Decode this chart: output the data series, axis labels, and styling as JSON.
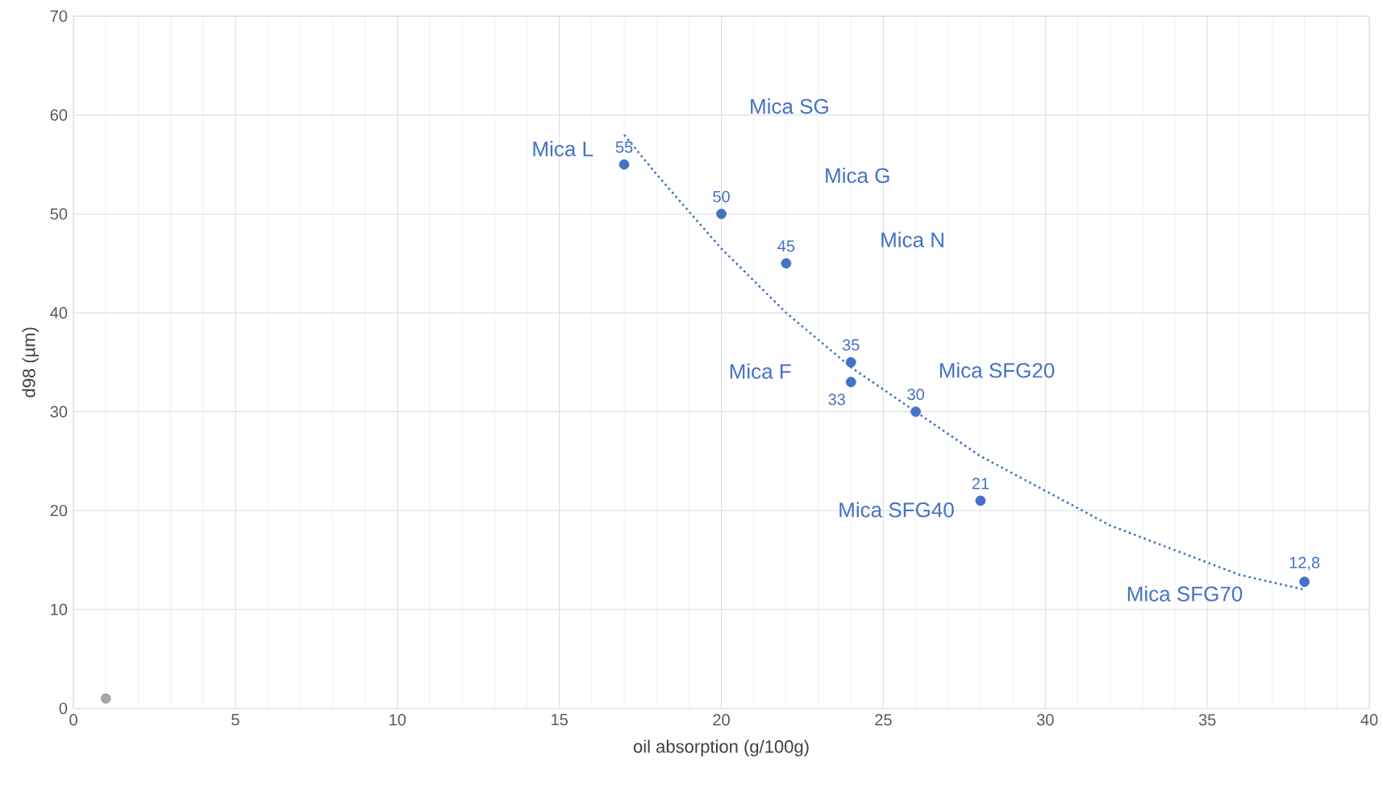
{
  "chart_data": {
    "type": "scatter",
    "xlabel": "oil absorption (g/100g)",
    "ylabel": "d98 (µm)",
    "xlim": [
      0,
      40
    ],
    "xticks": [
      0,
      5,
      10,
      15,
      20,
      25,
      30,
      35,
      40
    ],
    "ylim": [
      0,
      70
    ],
    "yticks": [
      0,
      10,
      20,
      30,
      40,
      50,
      60,
      70
    ],
    "grid": true,
    "marker": "circle",
    "series": [
      {
        "color": "#4472c4",
        "x": [
          17,
          20,
          22,
          24,
          24,
          26,
          28,
          38
        ],
        "values": [
          55,
          50,
          45,
          35,
          33,
          30,
          21,
          12.8
        ],
        "value_labels": [
          "55",
          "50",
          "45",
          "35",
          "33",
          "30",
          "21",
          "12,8"
        ]
      },
      {
        "color": "#a5a5a5",
        "x": [
          1
        ],
        "values": [
          1
        ]
      },
      {
        "type": "line",
        "line_style": "dotted",
        "marker": "none",
        "color": "#4472c4",
        "x": [
          17,
          18,
          20,
          22,
          24,
          26,
          28,
          30,
          32,
          34,
          36,
          38
        ],
        "values": [
          58,
          54,
          46.5,
          40,
          34.5,
          30,
          25.5,
          22,
          18.5,
          16,
          13.5,
          12
        ]
      }
    ],
    "annotations": [
      "Mica L",
      "Mica SG",
      "Mica G",
      "Mica N",
      "Mica F",
      "Mica SFG20",
      "Mica SFG40",
      "Mica SFG70"
    ]
  }
}
